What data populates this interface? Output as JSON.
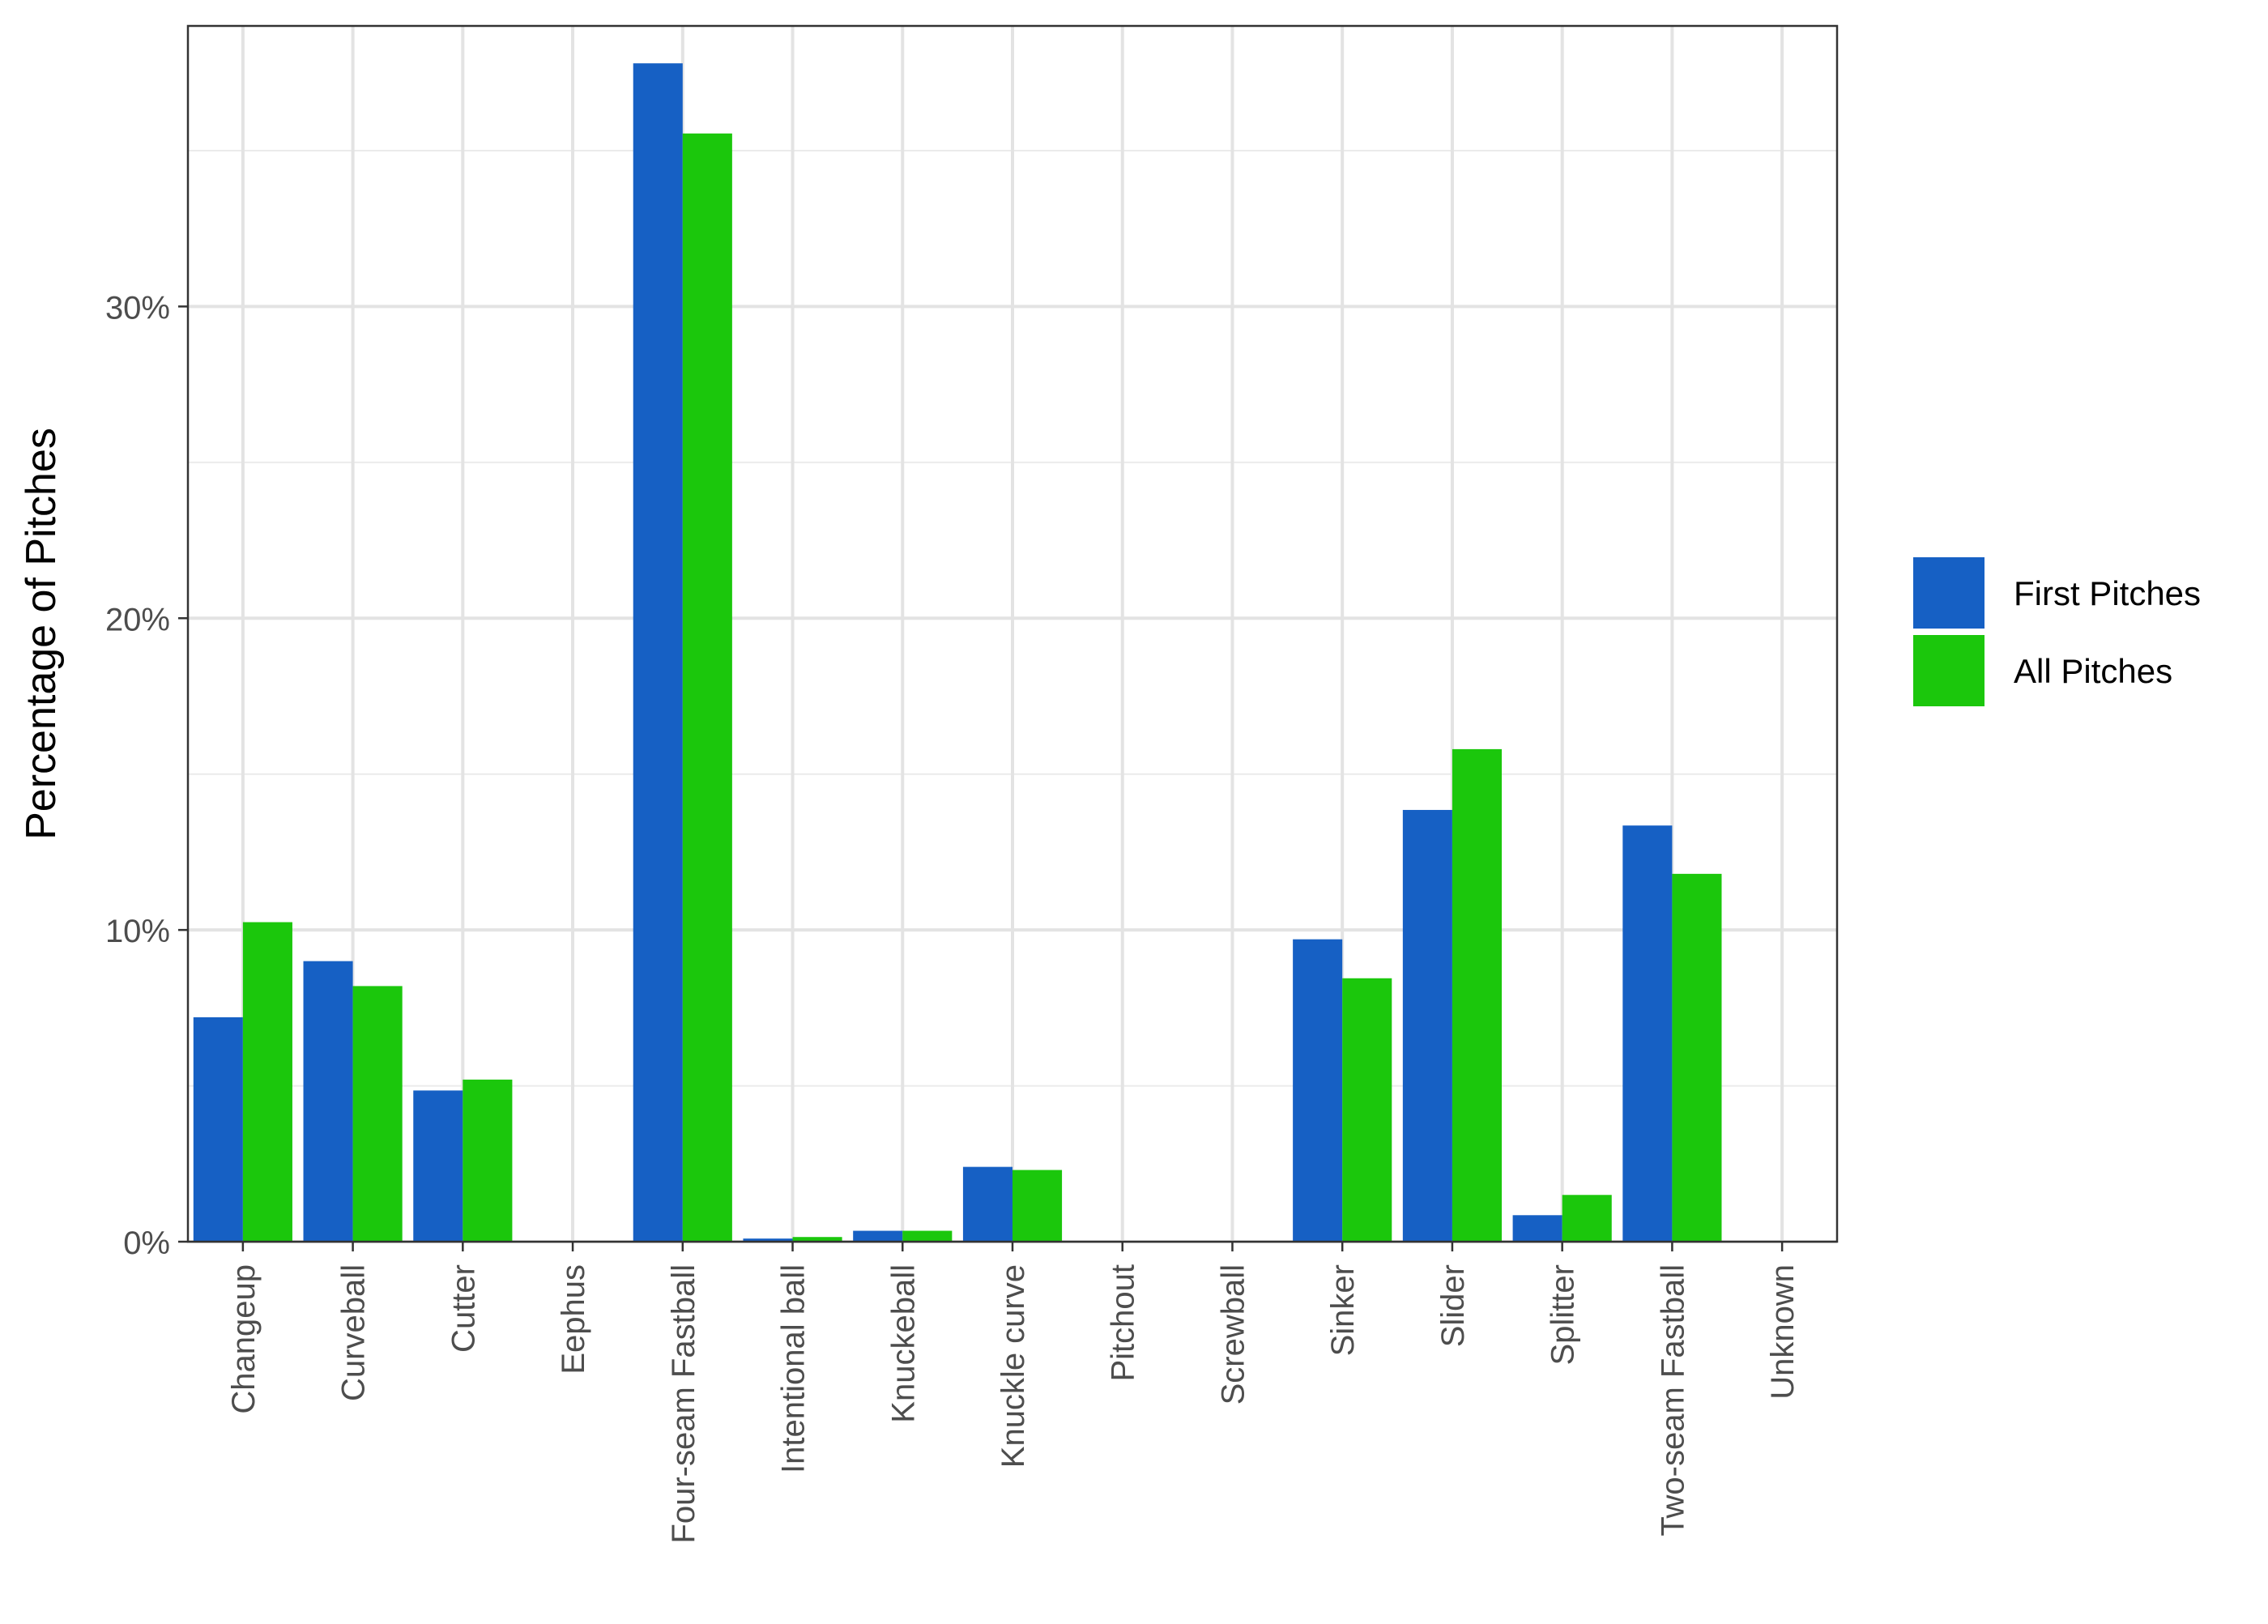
{
  "chart_data": {
    "type": "bar",
    "title": "",
    "xlabel": "",
    "ylabel": "Percentage of Pitches",
    "categories": [
      "Changeup",
      "Curveball",
      "Cutter",
      "Eephus",
      "Four-seam Fastball",
      "Intentional ball",
      "Knuckeball",
      "Knuckle curve",
      "Pitchout",
      "Screwball",
      "Sinker",
      "Slider",
      "Splitter",
      "Two-seam Fastball",
      "Unknown"
    ],
    "series": [
      {
        "name": "First Pitches",
        "color": "#1660c4",
        "values": [
          7.2,
          9.0,
          4.85,
          0.0,
          37.8,
          0.1,
          0.35,
          2.4,
          0.0,
          0.0,
          9.7,
          13.85,
          0.85,
          13.35,
          0.0
        ]
      },
      {
        "name": "All Pitches",
        "color": "#1bc70c",
        "values": [
          10.25,
          8.2,
          5.2,
          0.0,
          35.55,
          0.15,
          0.35,
          2.3,
          0.0,
          0.0,
          8.45,
          15.8,
          1.5,
          11.8,
          0.0
        ]
      }
    ],
    "ylim": [
      0,
      39
    ],
    "yticks": [
      0,
      10,
      20,
      30
    ],
    "ytick_labels": [
      "0%",
      "10%",
      "20%",
      "30%"
    ],
    "grid": true,
    "legend_position": "right"
  }
}
